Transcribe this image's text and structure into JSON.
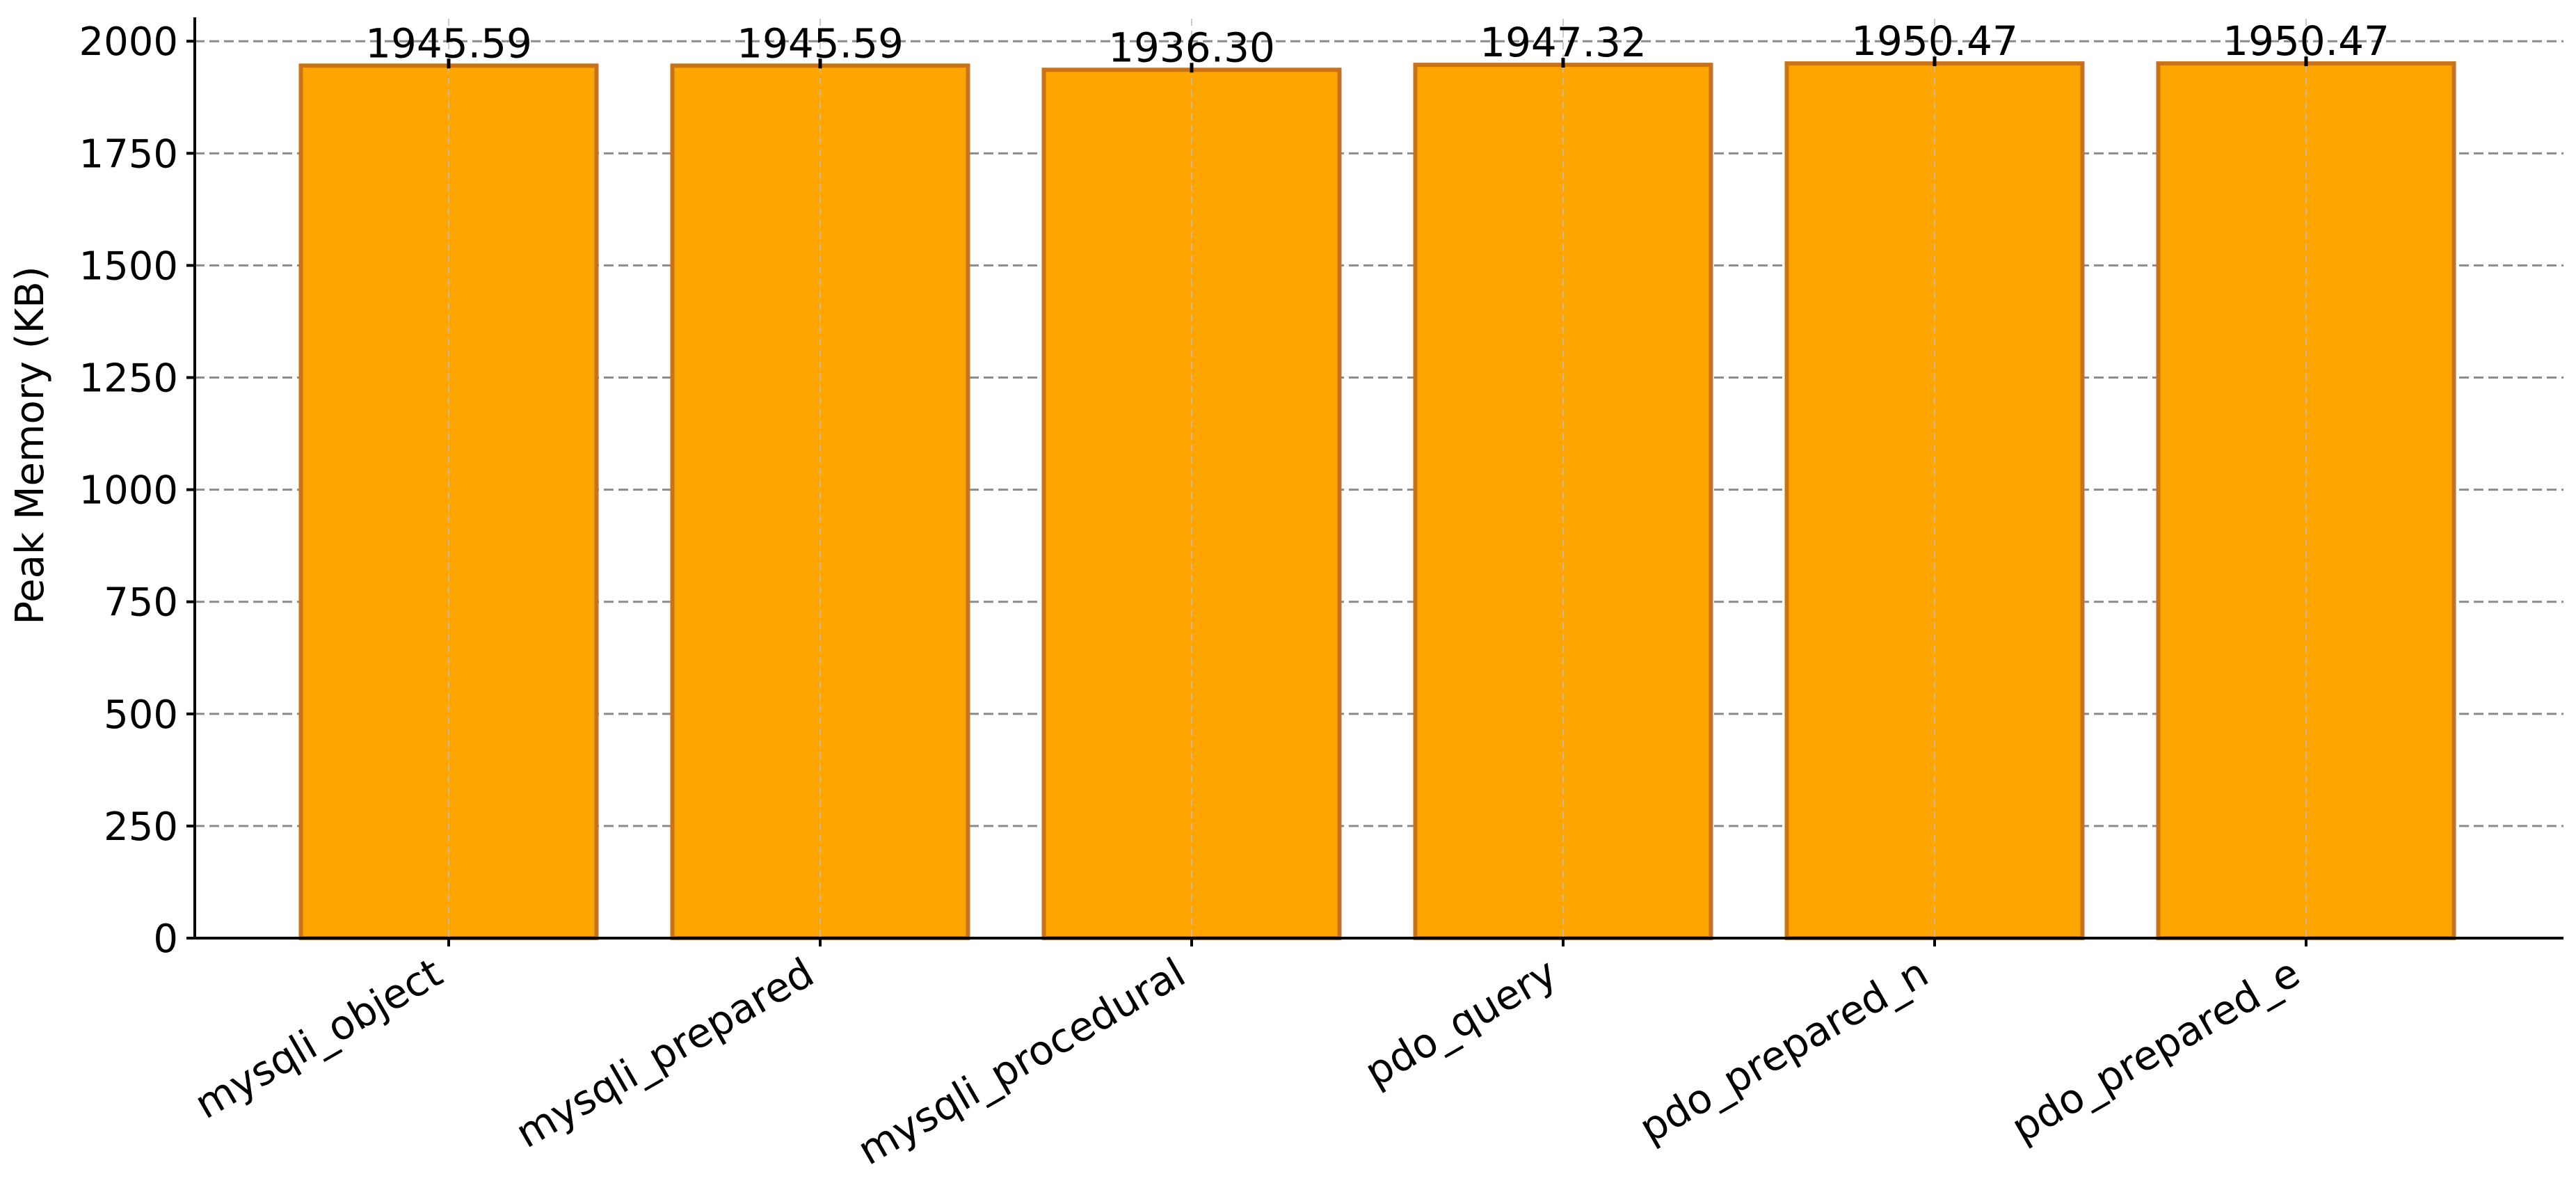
{
  "chart_data": {
    "type": "bar",
    "title": "",
    "xlabel": "",
    "ylabel": "Peak Memory (KB)",
    "categories": [
      "mysqli_object",
      "mysqli_prepared",
      "mysqli_procedural",
      "pdo_query",
      "pdo_prepared_n",
      "pdo_prepared_e"
    ],
    "values": [
      1945.59,
      1945.59,
      1936.3,
      1947.32,
      1950.47,
      1950.47
    ],
    "value_labels": [
      "1945.59",
      "1945.59",
      "1936.30",
      "1947.32",
      "1950.47",
      "1950.47"
    ],
    "ylim": [
      0,
      2050
    ],
    "yticks": [
      0,
      250,
      500,
      750,
      1000,
      1250,
      1500,
      1750,
      2000
    ],
    "grid": true,
    "bar_color": "#ffa500",
    "bar_edge_color": "#c8731c"
  }
}
